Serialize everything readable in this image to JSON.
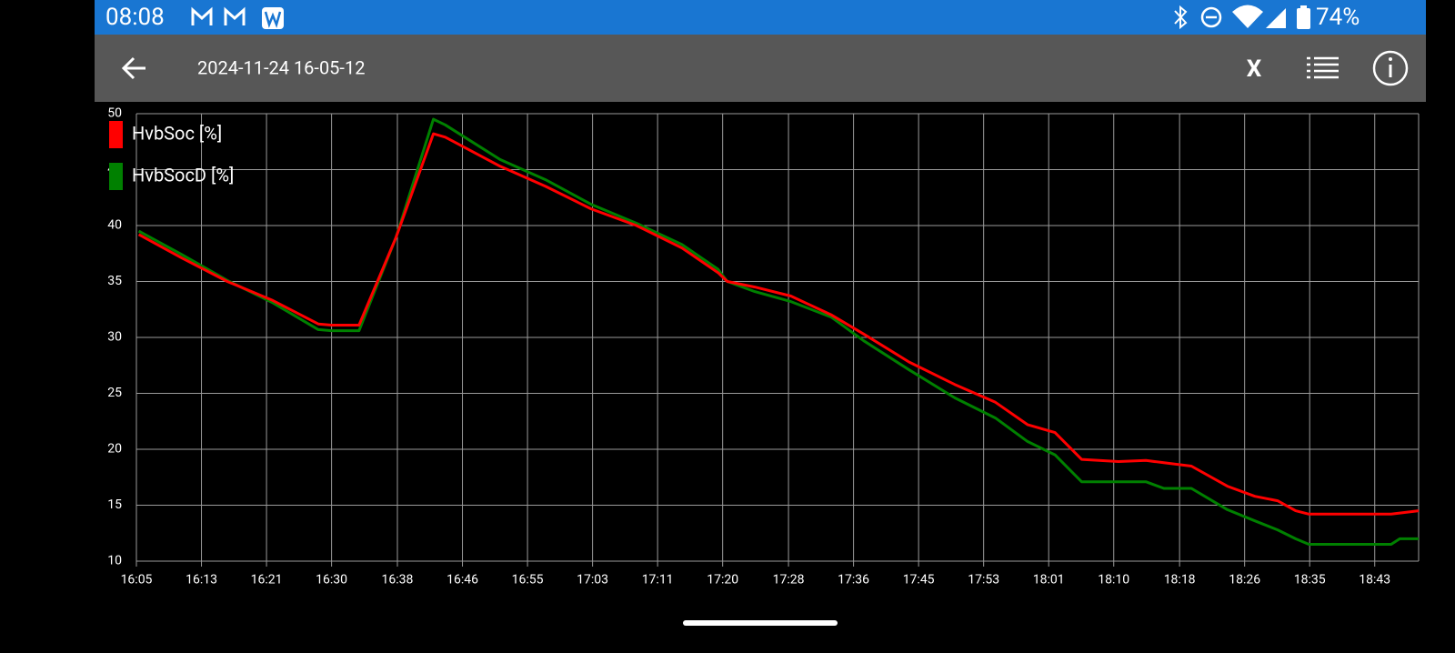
{
  "status_bar": {
    "time": "08:08",
    "battery": "74%"
  },
  "toolbar": {
    "title": "2024-11-24 16-05-12",
    "action": "X"
  },
  "chart_data": {
    "type": "line",
    "x": [
      965.3,
      970.8,
      976.6,
      982.4,
      988.2,
      989.9,
      993.4,
      998.1,
      1002.9,
      1004.4,
      1011.4,
      1017.2,
      1023.0,
      1028.8,
      1034.6,
      1039.2,
      1040.4,
      1043.9,
      1048.5,
      1053.7,
      1057.8,
      1063.6,
      1069.4,
      1074.6,
      1078.7,
      1082.2,
      1085.6,
      1090.3,
      1093.8,
      1096.1,
      1099.6,
      1104.2,
      1107.7,
      1110.6,
      1112.9,
      1114.6,
      1121.6,
      1125.1,
      1126.2,
      1128.6
    ],
    "series": [
      {
        "name": "HvbSoc [%]",
        "color": "#ff0000",
        "values": [
          39.2,
          37.1,
          35.0,
          33.3,
          31.2,
          31.1,
          31.1,
          38.9,
          48.2,
          47.9,
          45.3,
          43.5,
          41.5,
          40.0,
          38.0,
          35.8,
          35.0,
          34.5,
          33.7,
          32.0,
          30.3,
          27.8,
          25.8,
          24.2,
          22.2,
          21.5,
          19.1,
          18.9,
          19.0,
          18.8,
          18.5,
          16.7,
          15.8,
          15.4,
          14.5,
          14.2,
          14.2,
          14.2,
          14.3,
          14.5
        ]
      },
      {
        "name": "HvbSocD [%]",
        "color": "#008000",
        "values": [
          39.5,
          37.4,
          35.1,
          33.1,
          30.7,
          30.6,
          30.6,
          38.9,
          49.5,
          49.0,
          45.9,
          44.1,
          41.9,
          40.2,
          38.3,
          36.1,
          35.0,
          34.1,
          33.2,
          31.8,
          29.7,
          27.1,
          24.6,
          22.8,
          20.7,
          19.5,
          17.1,
          17.1,
          17.1,
          16.5,
          16.5,
          14.6,
          13.6,
          12.8,
          12.0,
          11.5,
          11.5,
          11.5,
          12.0,
          12.0
        ]
      }
    ],
    "xlim": [
      965,
      1128.6
    ],
    "xticks": [
      {
        "value": 965,
        "label": "16:05"
      },
      {
        "value": 973.3,
        "label": "16:13"
      },
      {
        "value": 981.6,
        "label": "16:21"
      },
      {
        "value": 989.9,
        "label": "16:30"
      },
      {
        "value": 998.3,
        "label": "16:38"
      },
      {
        "value": 1006.6,
        "label": "16:46"
      },
      {
        "value": 1014.9,
        "label": "16:55"
      },
      {
        "value": 1023.2,
        "label": "17:03"
      },
      {
        "value": 1031.5,
        "label": "17:11"
      },
      {
        "value": 1039.8,
        "label": "17:20"
      },
      {
        "value": 1048.2,
        "label": "17:28"
      },
      {
        "value": 1056.5,
        "label": "17:36"
      },
      {
        "value": 1064.8,
        "label": "17:45"
      },
      {
        "value": 1073.1,
        "label": "17:53"
      },
      {
        "value": 1081.4,
        "label": "18:01"
      },
      {
        "value": 1089.7,
        "label": "18:10"
      },
      {
        "value": 1098.1,
        "label": "18:18"
      },
      {
        "value": 1106.4,
        "label": "18:26"
      },
      {
        "value": 1114.7,
        "label": "18:35"
      },
      {
        "value": 1123.0,
        "label": "18:43"
      }
    ],
    "ylim": [
      10,
      50
    ],
    "yticks": [
      10,
      15,
      20,
      25,
      30,
      35,
      40,
      45,
      50
    ],
    "grid": true
  }
}
